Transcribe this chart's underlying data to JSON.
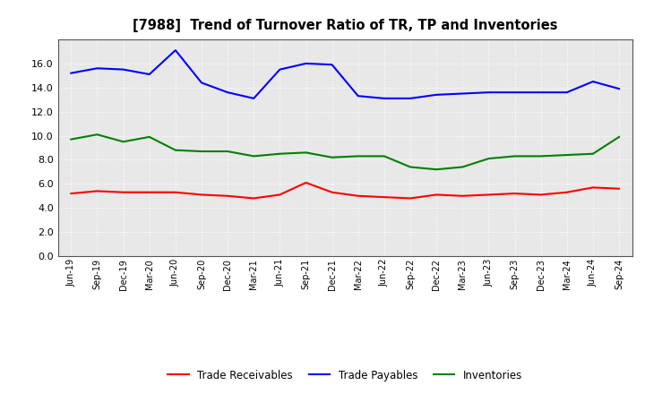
{
  "title": "[7988]  Trend of Turnover Ratio of TR, TP and Inventories",
  "x_labels": [
    "Jun-19",
    "Sep-19",
    "Dec-19",
    "Mar-20",
    "Jun-20",
    "Sep-20",
    "Dec-20",
    "Mar-21",
    "Jun-21",
    "Sep-21",
    "Dec-21",
    "Mar-22",
    "Jun-22",
    "Sep-22",
    "Dec-22",
    "Mar-23",
    "Jun-23",
    "Sep-23",
    "Dec-23",
    "Mar-24",
    "Jun-24",
    "Sep-24"
  ],
  "trade_receivables": [
    5.2,
    5.4,
    5.3,
    5.3,
    5.3,
    5.1,
    5.0,
    4.8,
    5.1,
    6.1,
    5.3,
    5.0,
    4.9,
    4.8,
    5.1,
    5.0,
    5.1,
    5.2,
    5.1,
    5.3,
    5.7,
    5.6
  ],
  "trade_payables": [
    15.2,
    15.6,
    15.5,
    15.1,
    17.1,
    14.4,
    13.6,
    13.1,
    15.5,
    16.0,
    15.9,
    13.3,
    13.1,
    13.1,
    13.4,
    13.5,
    13.6,
    13.6,
    13.6,
    13.6,
    14.5,
    13.9
  ],
  "inventories": [
    9.7,
    10.1,
    9.5,
    9.9,
    8.8,
    8.7,
    8.7,
    8.3,
    8.5,
    8.6,
    8.2,
    8.3,
    8.3,
    7.4,
    7.2,
    7.4,
    8.1,
    8.3,
    8.3,
    8.4,
    8.5,
    9.9
  ],
  "tr_color": "#ff0000",
  "tp_color": "#0000ff",
  "inv_color": "#008000",
  "ylim": [
    0.0,
    18.0
  ],
  "yticks": [
    0.0,
    2.0,
    4.0,
    6.0,
    8.0,
    10.0,
    12.0,
    14.0,
    16.0
  ],
  "background_color": "#ffffff",
  "plot_bg_color": "#e8e8e8",
  "grid_color": "#ffffff",
  "legend_tr": "Trade Receivables",
  "legend_tp": "Trade Payables",
  "legend_inv": "Inventories"
}
